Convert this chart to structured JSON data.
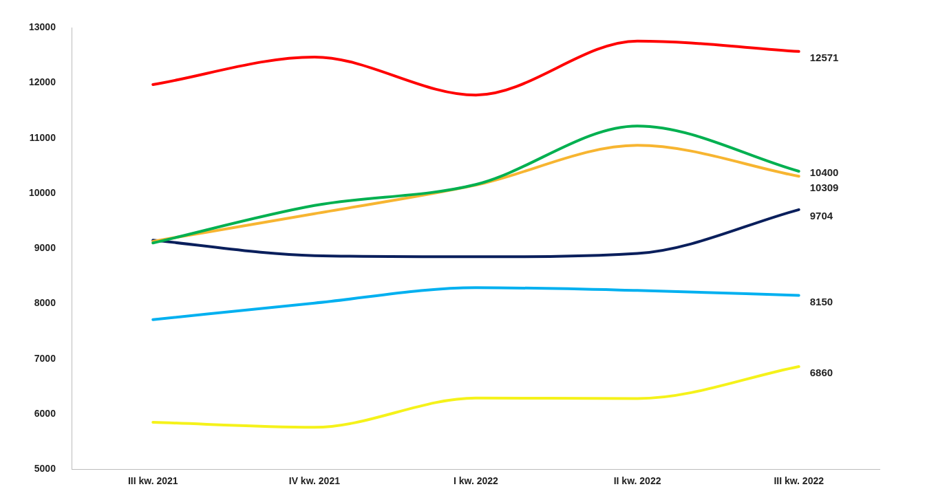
{
  "chart_data": {
    "type": "line",
    "categories": [
      "III kw. 2021",
      "IV kw. 2021",
      "I kw. 2022",
      "II kw. 2022",
      "III kw. 2022"
    ],
    "ylim": [
      5000,
      13000
    ],
    "yticks": [
      5000,
      6000,
      7000,
      8000,
      9000,
      10000,
      11000,
      12000,
      13000
    ],
    "grid": false,
    "legend": false,
    "marker": "none",
    "series": [
      {
        "color": "#ff0000",
        "values": [
          11970,
          12470,
          11780,
          12760,
          12571
        ],
        "value_labels": [
          null,
          null,
          null,
          null,
          "12571"
        ]
      },
      {
        "color": "#00b050",
        "values": [
          9100,
          9780,
          10160,
          11220,
          10400
        ],
        "value_labels": [
          null,
          null,
          null,
          null,
          "10400"
        ]
      },
      {
        "color": "#f7b531",
        "values": [
          9130,
          9630,
          10150,
          10870,
          10309
        ],
        "value_labels": [
          null,
          null,
          null,
          null,
          "10309"
        ]
      },
      {
        "color": "#0a1f5c",
        "values": [
          9150,
          8870,
          8850,
          8910,
          9704
        ],
        "value_labels": [
          null,
          null,
          null,
          null,
          "9704"
        ]
      },
      {
        "color": "#00b0f0",
        "values": [
          7710,
          8010,
          8290,
          8240,
          8150
        ],
        "value_labels": [
          null,
          null,
          null,
          null,
          "8150"
        ]
      },
      {
        "color": "#f5f21a",
        "values": [
          5850,
          5760,
          6290,
          6280,
          6860
        ],
        "value_labels": [
          null,
          null,
          null,
          null,
          "6860"
        ]
      }
    ]
  }
}
